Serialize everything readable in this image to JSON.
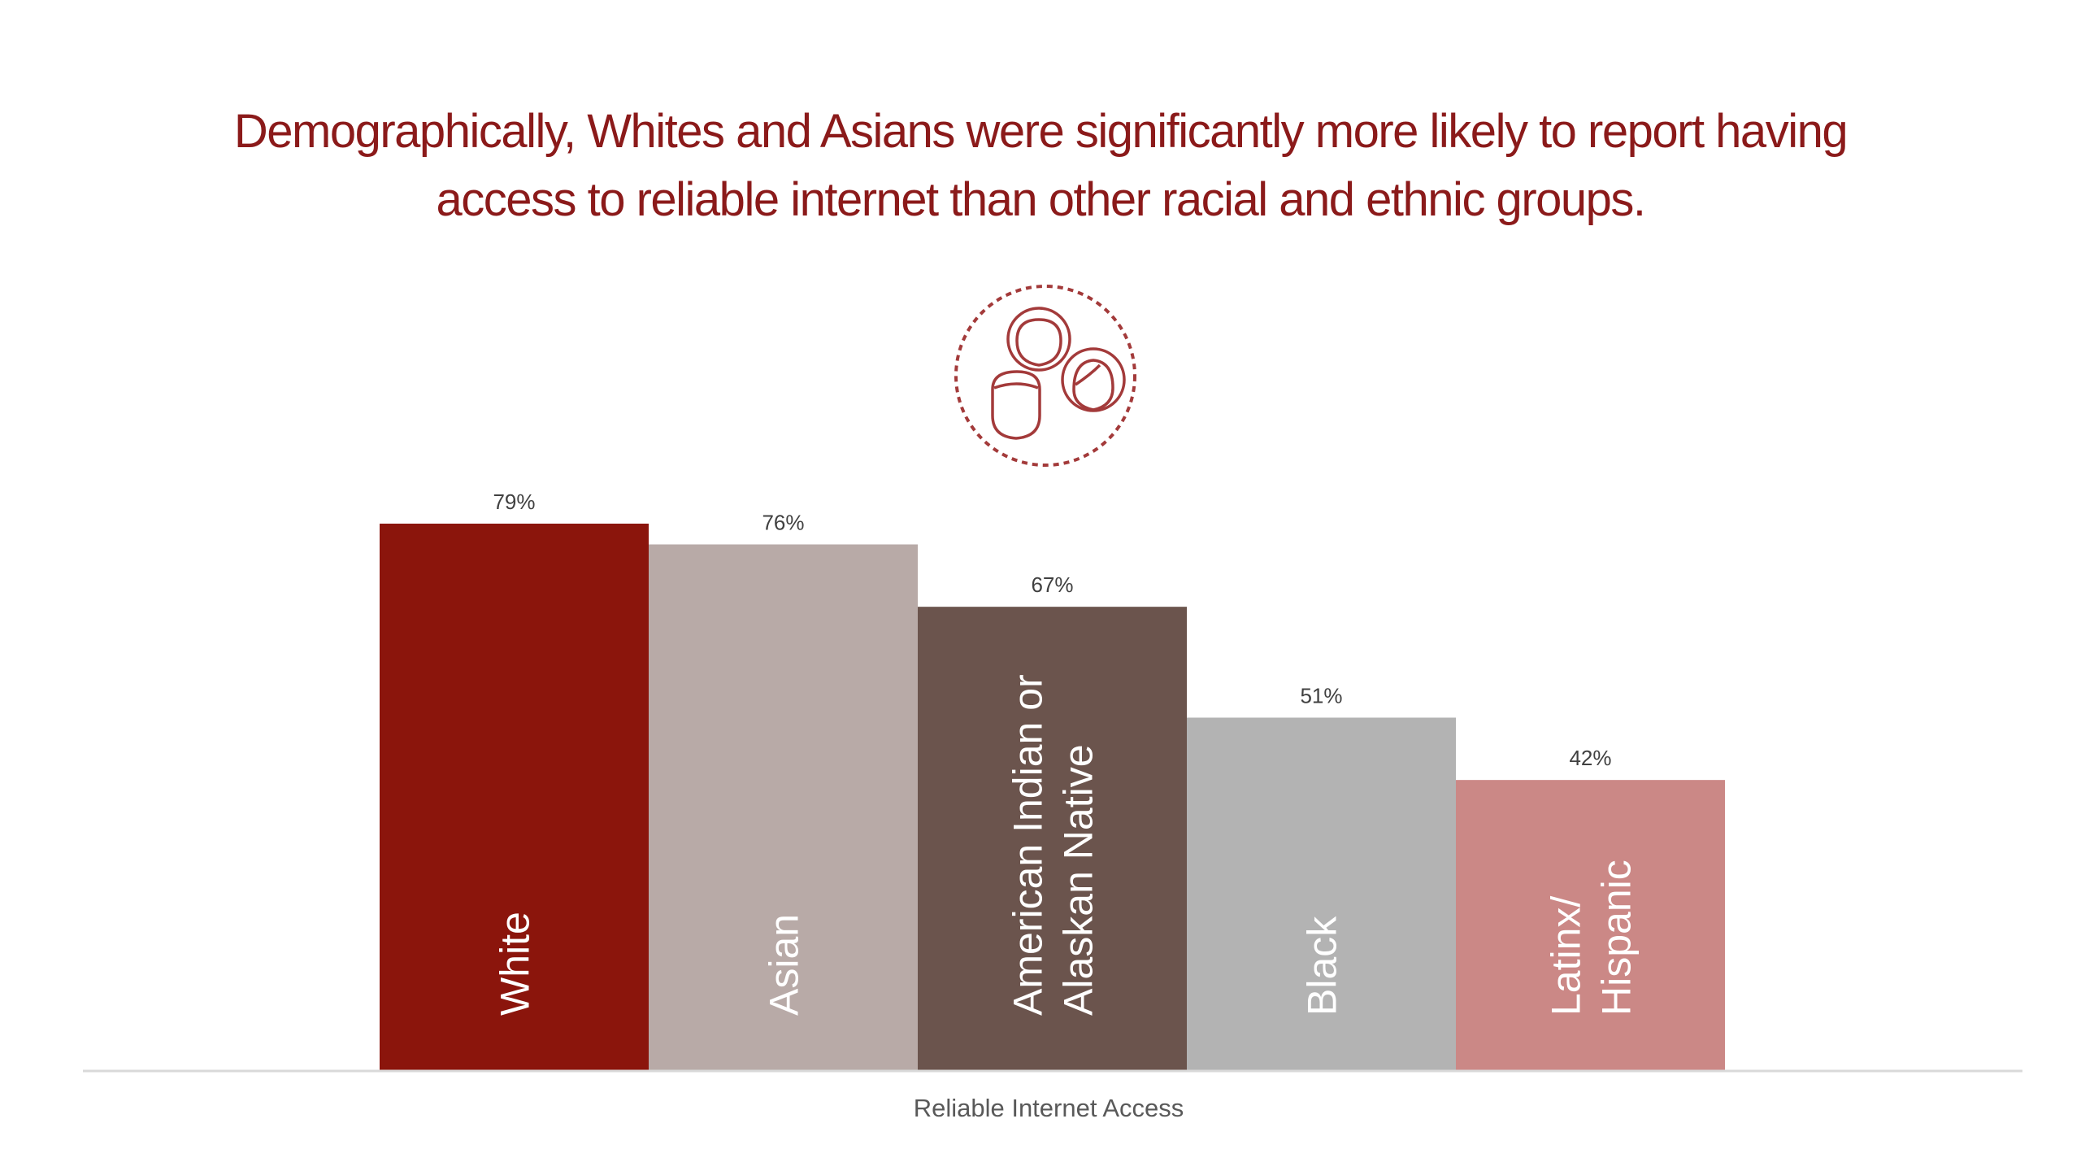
{
  "title_lines": [
    "Demographically, Whites and Asians were significantly more likely to report having",
    "access to reliable internet than other racial and ethnic groups."
  ],
  "icon": "people-group-icon",
  "chart_data": {
    "type": "bar",
    "categories": [
      "White",
      "Asian",
      "American Indian or Alaskan Native",
      "Black",
      "Latinx/ Hispanic"
    ],
    "category_lines": [
      [
        "White"
      ],
      [
        "Asian"
      ],
      [
        "American Indian or",
        "Alaskan Native"
      ],
      [
        "Black"
      ],
      [
        "Latinx/",
        "Hispanic"
      ]
    ],
    "values": [
      79,
      76,
      67,
      51,
      42
    ],
    "data_labels": [
      "79%",
      "76%",
      "67%",
      "51%",
      "42%"
    ],
    "colors": [
      "#8b150c",
      "#b8aaa7",
      "#6b544d",
      "#b3b3b3",
      "#cb8886"
    ],
    "title": "Demographically, Whites and Asians were significantly more likely to report having access to reliable internet than other racial and ethnic groups.",
    "xlabel": "Reliable Internet Access",
    "ylabel": "",
    "ylim": [
      0,
      100
    ],
    "grid": false,
    "legend": "none"
  }
}
